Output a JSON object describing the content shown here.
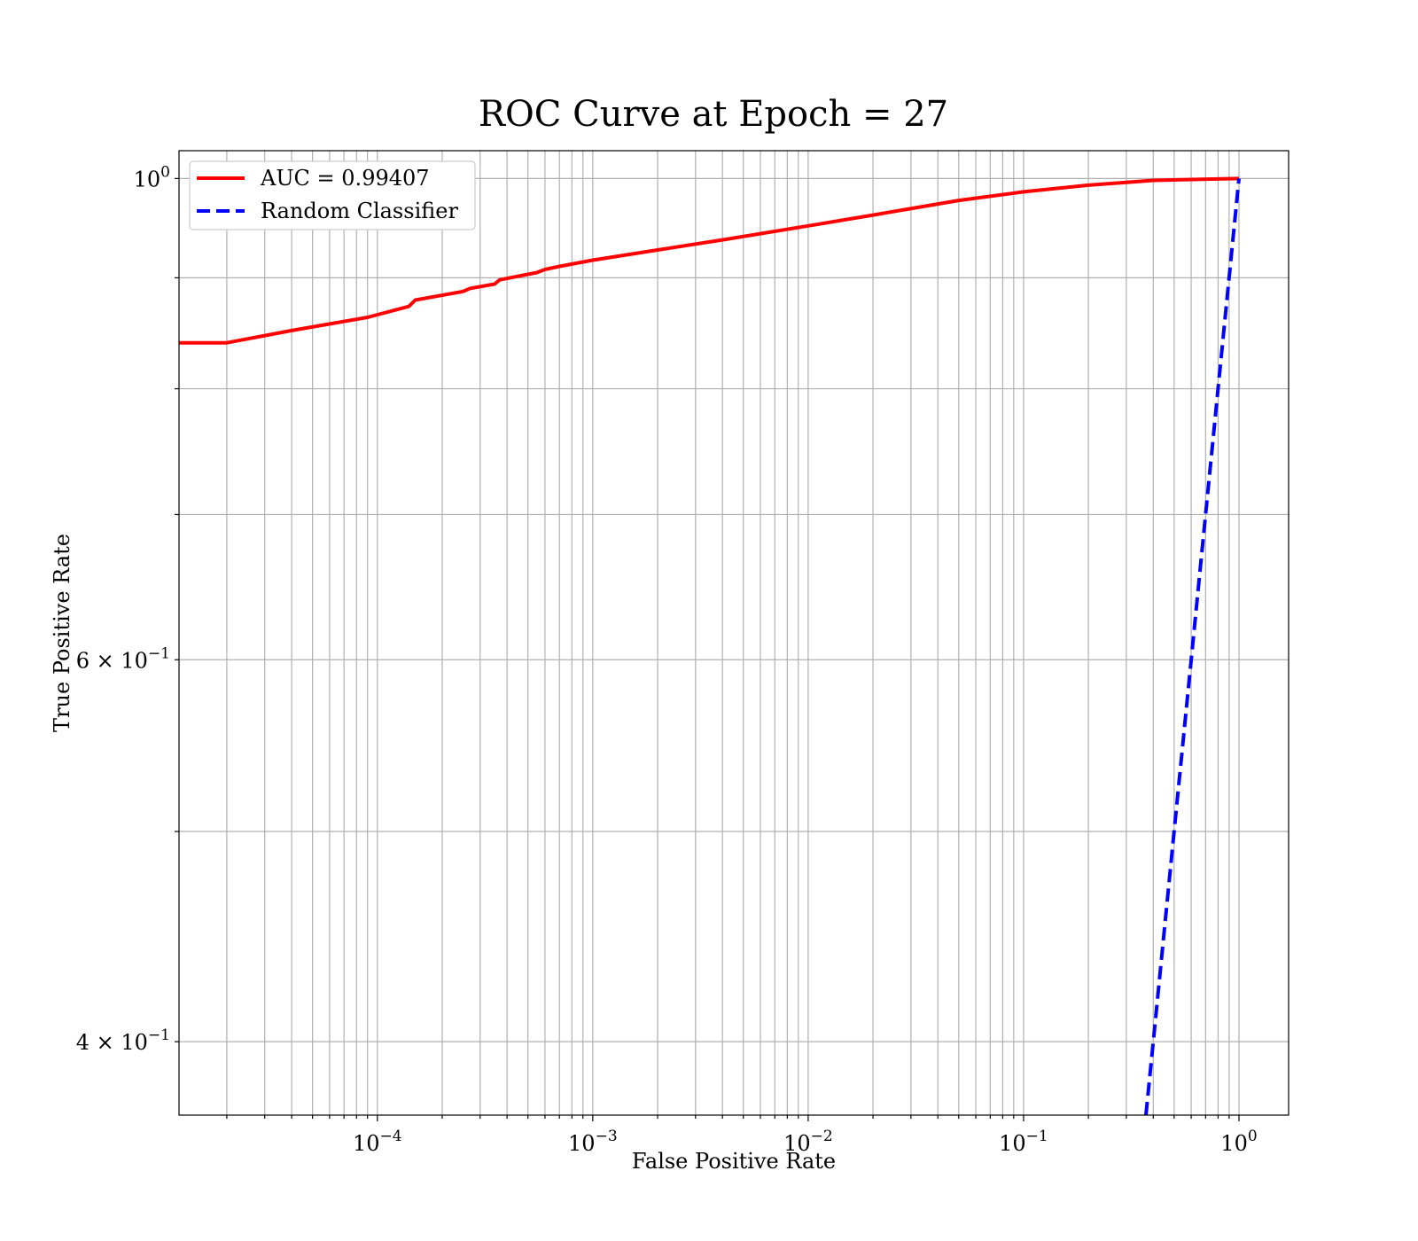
{
  "chart_data": {
    "type": "line",
    "title": "ROC Curve at Epoch = 27",
    "xlabel": "False Positive Rate",
    "ylabel": "True Positive Rate",
    "xscale": "log",
    "yscale": "log",
    "xlim": [
      1.2e-05,
      1.7
    ],
    "ylim": [
      0.37,
      1.03
    ],
    "grid": true,
    "legend_position": "top-left",
    "x_ticks": [
      {
        "value": 0.0001,
        "base": "10",
        "exp": "−4"
      },
      {
        "value": 0.001,
        "base": "10",
        "exp": "−3"
      },
      {
        "value": 0.01,
        "base": "10",
        "exp": "−2"
      },
      {
        "value": 0.1,
        "base": "10",
        "exp": "−1"
      },
      {
        "value": 1,
        "base": "10",
        "exp": "0"
      }
    ],
    "y_ticks": [
      {
        "value": 0.4,
        "base": "4 × 10",
        "exp": "−1"
      },
      {
        "value": 0.6,
        "base": "6 × 10",
        "exp": "−1"
      },
      {
        "value": 1,
        "base": "10",
        "exp": "0"
      }
    ],
    "series": [
      {
        "name": "AUC = 0.99407",
        "color": "#ff0000",
        "style": "solid",
        "x": [
          1.2e-05,
          2e-05,
          4e-05,
          9e-05,
          0.00014,
          0.00015,
          0.00025,
          0.00027,
          0.00035,
          0.00037,
          0.00055,
          0.0006,
          0.0007,
          0.001,
          0.002,
          0.004,
          0.01,
          0.02,
          0.05,
          0.1,
          0.2,
          0.4,
          0.6,
          1.0
        ],
        "y": [
          0.84,
          0.84,
          0.851,
          0.863,
          0.873,
          0.879,
          0.887,
          0.89,
          0.894,
          0.898,
          0.905,
          0.908,
          0.911,
          0.917,
          0.927,
          0.937,
          0.951,
          0.962,
          0.977,
          0.986,
          0.993,
          0.998,
          0.999,
          1.0
        ]
      },
      {
        "name": "Random Classifier",
        "color": "#0000ff",
        "style": "dashed",
        "x": [
          0.37,
          0.4,
          0.5,
          0.6,
          0.8,
          1.0
        ],
        "y": [
          0.37,
          0.4,
          0.5,
          0.6,
          0.8,
          1.0
        ]
      }
    ]
  }
}
